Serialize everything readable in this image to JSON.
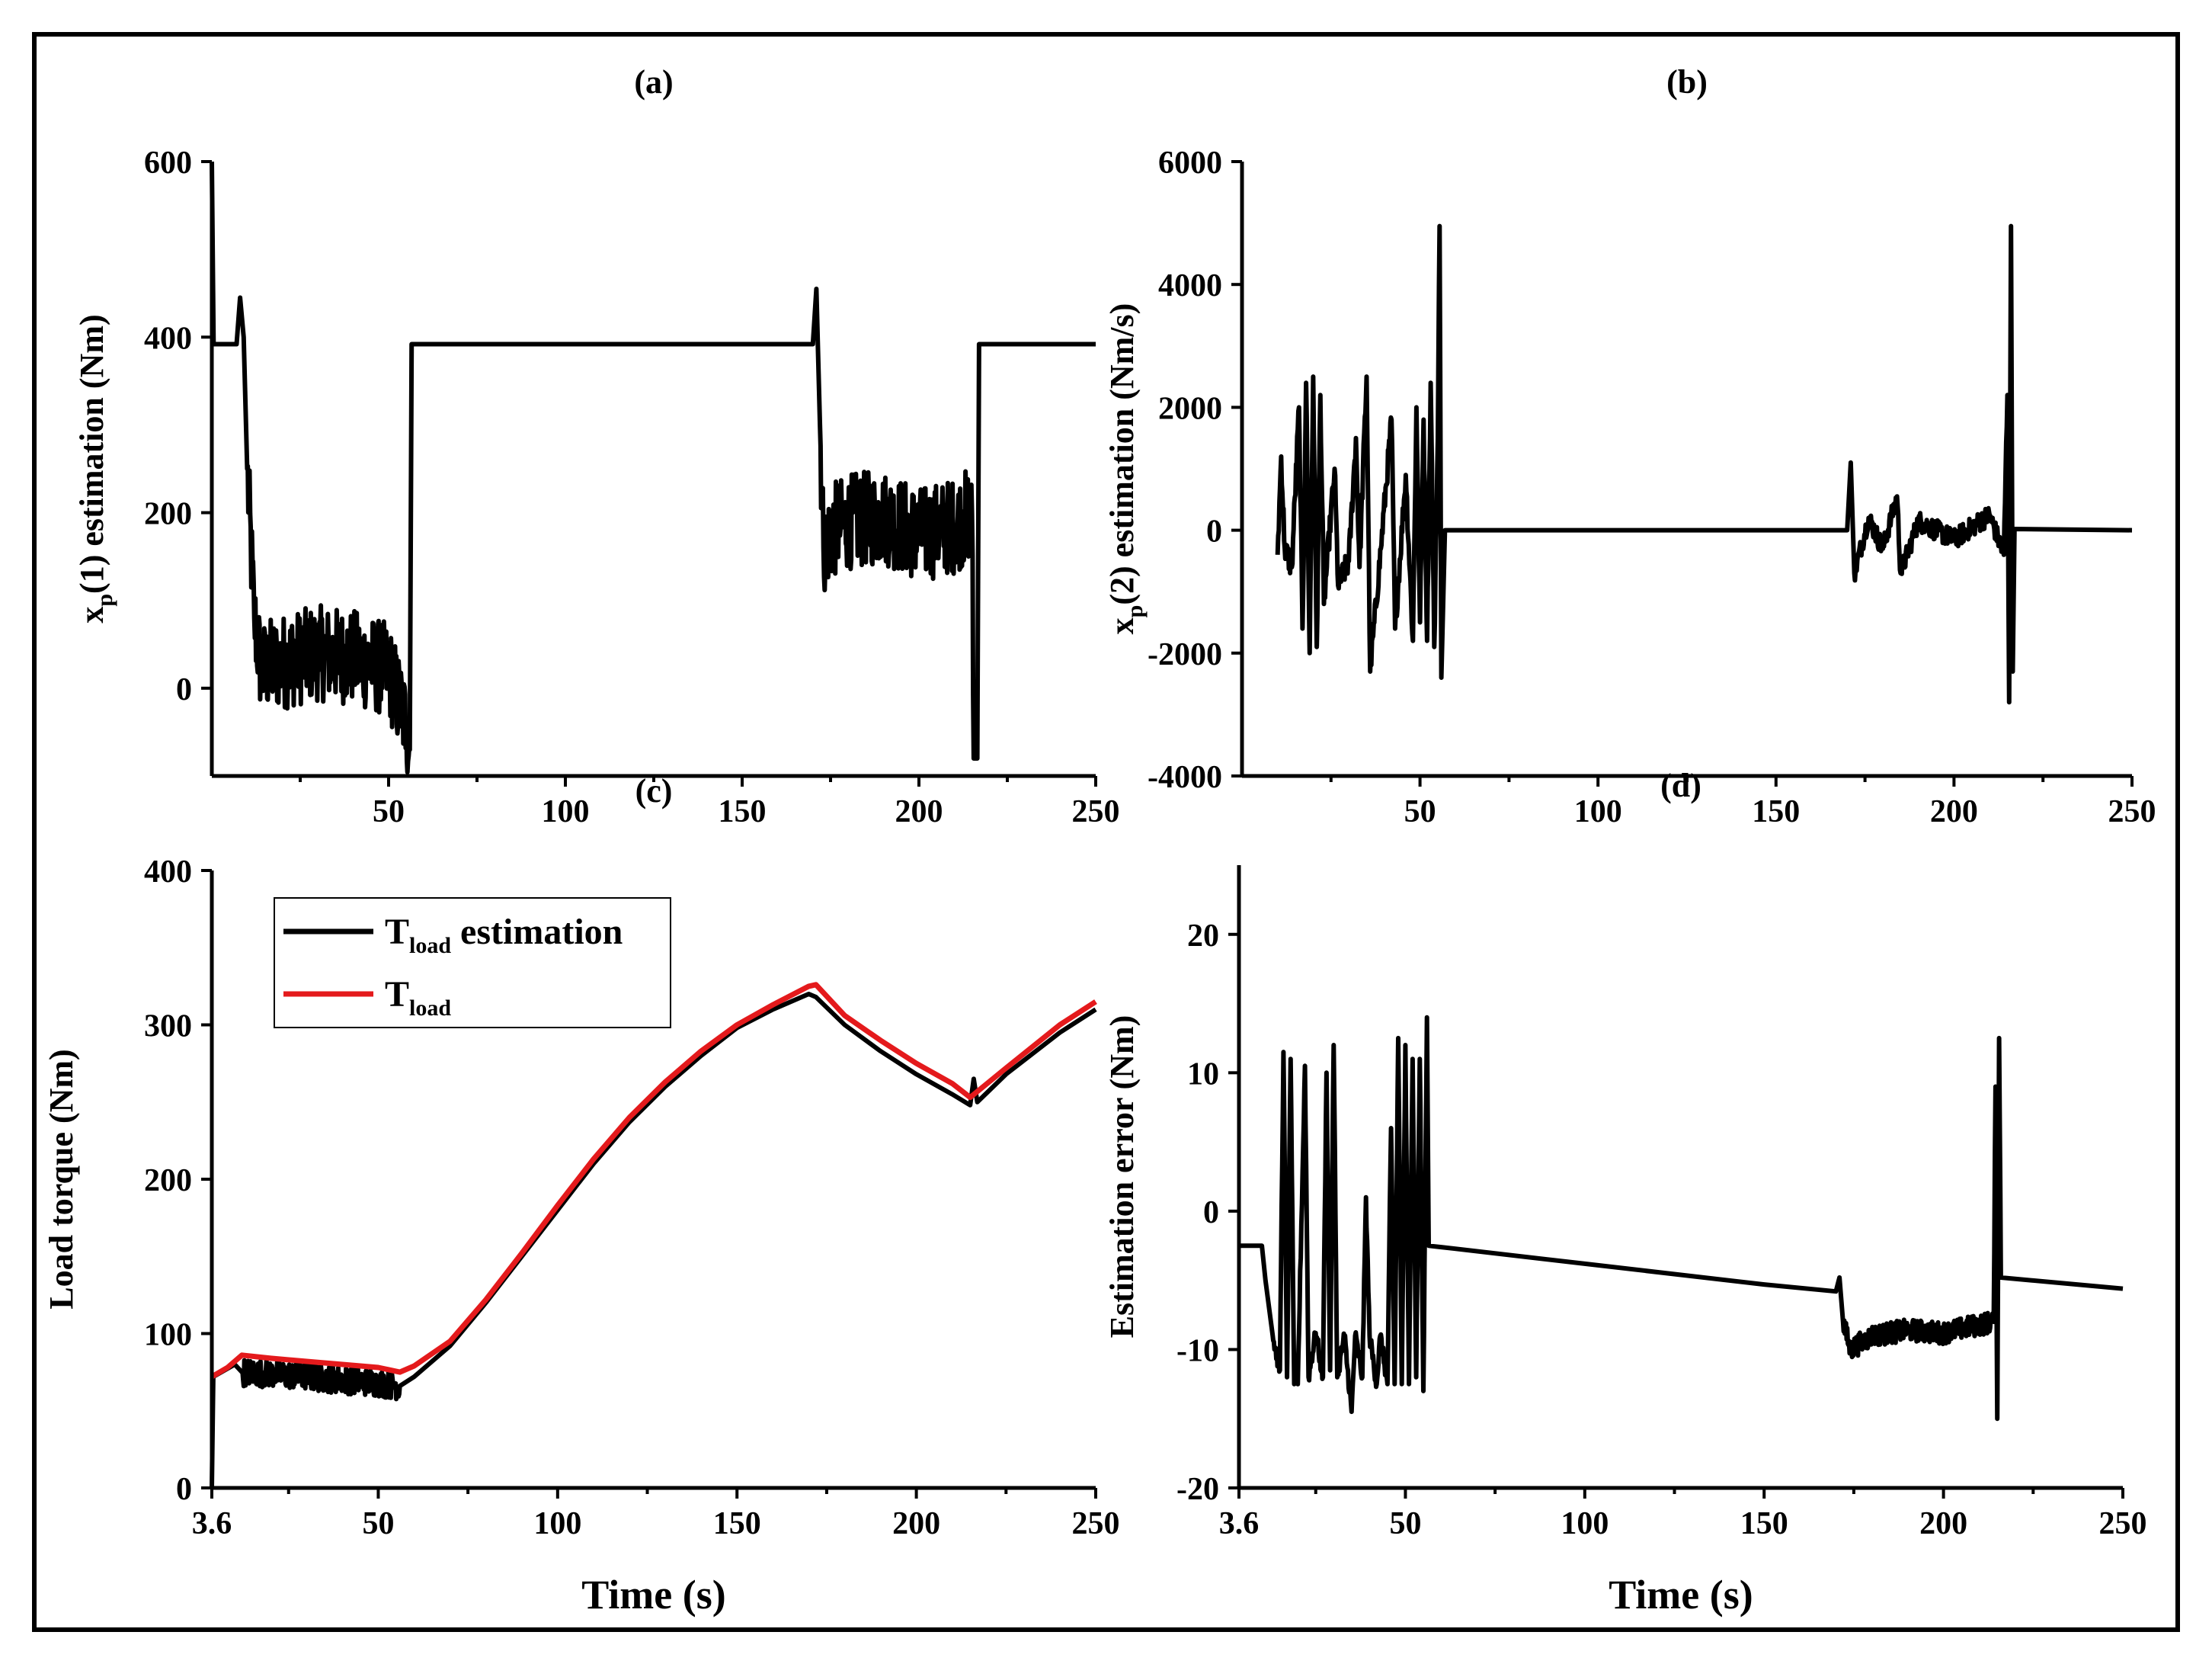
{
  "colors": {
    "estimate": "#000000",
    "reference": "#e41a1c",
    "frame": "#000000"
  },
  "chart_data": [
    {
      "id": "a",
      "type": "line",
      "title": "(a)",
      "ylabel": {
        "base": "x",
        "sub": "p",
        "rest": "(1) estimation (Nm)"
      },
      "xlabel": "",
      "xlim": [
        0,
        250
      ],
      "ylim": [
        -100,
        600
      ],
      "xticks": [
        50,
        100,
        150,
        200,
        250
      ],
      "xticklabels": [
        "50",
        "100",
        "150",
        "200",
        "250"
      ],
      "yticks": [
        0,
        200,
        400,
        600
      ],
      "yticklabels": [
        "0",
        "200",
        "400",
        "600"
      ],
      "series": [
        {
          "name": "xp(1) estimation",
          "color": "#000000",
          "noise": [
            [
              10,
              56,
              55
            ],
            [
              172,
              216,
              55
            ]
          ],
          "points": [
            [
              0,
              600
            ],
            [
              0.5,
              392
            ],
            [
              7,
              392
            ],
            [
              8,
              445
            ],
            [
              9,
              400
            ],
            [
              10,
              250
            ],
            [
              12,
              80
            ],
            [
              14,
              20
            ],
            [
              16,
              25
            ],
            [
              20,
              30
            ],
            [
              30,
              40
            ],
            [
              40,
              35
            ],
            [
              50,
              20
            ],
            [
              55,
              -40
            ],
            [
              56,
              -70
            ],
            [
              56.5,
              392
            ],
            [
              60,
              392
            ],
            [
              170,
              392
            ],
            [
              171,
              455
            ],
            [
              172,
              300
            ],
            [
              173,
              160
            ],
            [
              176,
              180
            ],
            [
              180,
              190
            ],
            [
              190,
              195
            ],
            [
              200,
              175
            ],
            [
              210,
              185
            ],
            [
              215,
              200
            ],
            [
              215.5,
              -80
            ],
            [
              216.5,
              -80
            ],
            [
              217,
              392
            ],
            [
              250,
              392
            ]
          ]
        }
      ]
    },
    {
      "id": "b",
      "type": "line",
      "title": "(b)",
      "ylabel": {
        "base": "x",
        "sub": "p",
        "rest": "(2) estimation (Nm/s)"
      },
      "xlabel": "",
      "xlim": [
        0,
        250
      ],
      "ylim": [
        -4000,
        6000
      ],
      "xticks": [
        50,
        100,
        150,
        200,
        250
      ],
      "xticklabels": [
        "50",
        "100",
        "150",
        "200",
        "250"
      ],
      "yticks": [
        -4000,
        -2000,
        0,
        2000,
        4000,
        6000
      ],
      "yticklabels": [
        "-4000",
        "-2000",
        "0",
        "2000",
        "4000",
        "6000"
      ],
      "series": [
        {
          "name": "xp(2) estimation",
          "color": "#000000",
          "noise": [
            [
              10,
              56,
              220
            ],
            [
              172,
              216,
              170
            ]
          ],
          "points": [
            [
              10,
              -400
            ],
            [
              11,
              1200
            ],
            [
              12,
              -300
            ],
            [
              14,
              -600
            ],
            [
              16,
              2000
            ],
            [
              17,
              -1600
            ],
            [
              18,
              2400
            ],
            [
              19,
              -2000
            ],
            [
              20,
              2500
            ],
            [
              21,
              -1900
            ],
            [
              22,
              2200
            ],
            [
              23,
              -1200
            ],
            [
              26,
              1000
            ],
            [
              27,
              -900
            ],
            [
              30,
              -500
            ],
            [
              32,
              1500
            ],
            [
              33,
              -600
            ],
            [
              35,
              2500
            ],
            [
              36,
              -2300
            ],
            [
              39,
              -300
            ],
            [
              42,
              1800
            ],
            [
              43,
              -1600
            ],
            [
              46,
              900
            ],
            [
              48,
              -1800
            ],
            [
              49,
              2000
            ],
            [
              50,
              -1500
            ],
            [
              51,
              1800
            ],
            [
              52,
              -1800
            ],
            [
              53,
              2400
            ],
            [
              54,
              -1900
            ],
            [
              55,
              1500
            ],
            [
              55.5,
              4950
            ],
            [
              56,
              -2400
            ],
            [
              57,
              0
            ],
            [
              100,
              0
            ],
            [
              170,
              0
            ],
            [
              171,
              1100
            ],
            [
              172,
              -700
            ],
            [
              176,
              200
            ],
            [
              180,
              -300
            ],
            [
              184,
              550
            ],
            [
              185,
              -700
            ],
            [
              190,
              150
            ],
            [
              200,
              -150
            ],
            [
              210,
              250
            ],
            [
              214,
              -400
            ],
            [
              215,
              2200
            ],
            [
              215.5,
              -2800
            ],
            [
              216,
              4950
            ],
            [
              216.5,
              -2300
            ],
            [
              217,
              20
            ],
            [
              250,
              0
            ]
          ]
        }
      ]
    },
    {
      "id": "c",
      "type": "line",
      "title": "(c)",
      "ylabel": "Load torque (Nm)",
      "xlabel": "Time (s)",
      "xlim": [
        3.6,
        250
      ],
      "ylim": [
        0,
        400
      ],
      "xticks": [
        3.6,
        50,
        100,
        150,
        200,
        250
      ],
      "xticklabels": [
        "3.6",
        "50",
        "100",
        "150",
        "200",
        "250"
      ],
      "yticks": [
        0,
        100,
        200,
        300,
        400
      ],
      "yticklabels": [
        "0",
        "100",
        "200",
        "300",
        "400"
      ],
      "legend": [
        {
          "base": "T",
          "sub": "load",
          "rest": " estimation",
          "color": "#000000"
        },
        {
          "base": "T",
          "sub": "load",
          "rest": "",
          "color": "#e41a1c"
        }
      ],
      "series": [
        {
          "name": "Tload estimation",
          "color": "#000000",
          "noise": [
            [
              12,
              56,
              9
            ]
          ],
          "points": [
            [
              3.6,
              0
            ],
            [
              4,
              72
            ],
            [
              10,
              80
            ],
            [
              12,
              75
            ],
            [
              20,
              74
            ],
            [
              30,
              72
            ],
            [
              40,
              70
            ],
            [
              50,
              68
            ],
            [
              56,
              66
            ],
            [
              60,
              72
            ],
            [
              70,
              92
            ],
            [
              80,
              120
            ],
            [
              90,
              150
            ],
            [
              100,
              180
            ],
            [
              110,
              210
            ],
            [
              120,
              237
            ],
            [
              130,
              260
            ],
            [
              140,
              280
            ],
            [
              150,
              298
            ],
            [
              160,
              310
            ],
            [
              170,
              320
            ],
            [
              172,
              318
            ],
            [
              180,
              300
            ],
            [
              190,
              283
            ],
            [
              200,
              268
            ],
            [
              210,
              255
            ],
            [
              215,
              248
            ],
            [
              216,
              265
            ],
            [
              217,
              250
            ],
            [
              225,
              268
            ],
            [
              240,
              295
            ],
            [
              250,
              310
            ]
          ]
        },
        {
          "name": "Tload",
          "color": "#e41a1c",
          "points": [
            [
              3.6,
              72
            ],
            [
              8,
              78
            ],
            [
              12,
              86
            ],
            [
              20,
              84
            ],
            [
              30,
              82
            ],
            [
              40,
              80
            ],
            [
              50,
              78
            ],
            [
              56,
              75
            ],
            [
              60,
              79
            ],
            [
              70,
              95
            ],
            [
              80,
              122
            ],
            [
              90,
              152
            ],
            [
              100,
              183
            ],
            [
              110,
              213
            ],
            [
              120,
              240
            ],
            [
              130,
              263
            ],
            [
              140,
              283
            ],
            [
              150,
              300
            ],
            [
              160,
              313
            ],
            [
              170,
              325
            ],
            [
              172,
              326
            ],
            [
              180,
              306
            ],
            [
              190,
              290
            ],
            [
              200,
              275
            ],
            [
              210,
              262
            ],
            [
              215,
              253
            ],
            [
              225,
              272
            ],
            [
              240,
              300
            ],
            [
              250,
              315
            ]
          ]
        }
      ]
    },
    {
      "id": "d",
      "type": "line",
      "title": "(d)",
      "ylabel": "Estimation error (Nm)",
      "xlabel": "Time (s)",
      "xlim": [
        3.6,
        250
      ],
      "ylim": [
        -20,
        25
      ],
      "xticks": [
        3.6,
        50,
        100,
        150,
        200,
        250
      ],
      "xticklabels": [
        "3.6",
        "50",
        "100",
        "150",
        "200",
        "250"
      ],
      "yticks": [
        -20,
        -10,
        0,
        10,
        20
      ],
      "yticklabels": [
        "-20",
        "-10",
        "0",
        "10",
        "20"
      ],
      "series": [
        {
          "name": "Estimation error",
          "color": "#000000",
          "noise": [
            [
              13,
              56,
              0.6
            ],
            [
              172,
              216,
              0.8
            ]
          ],
          "points": [
            [
              3.6,
              -2.5
            ],
            [
              10,
              -2.5
            ],
            [
              11,
              -5
            ],
            [
              13,
              -9
            ],
            [
              15,
              -11.5
            ],
            [
              16,
              11.5
            ],
            [
              17,
              -12
            ],
            [
              18,
              11
            ],
            [
              19,
              -12.5
            ],
            [
              20,
              -12.5
            ],
            [
              22,
              10.5
            ],
            [
              23,
              -12
            ],
            [
              25,
              -8.8
            ],
            [
              27,
              -12
            ],
            [
              28,
              10
            ],
            [
              29,
              -11.5
            ],
            [
              30,
              12
            ],
            [
              31,
              -12
            ],
            [
              33,
              -9
            ],
            [
              35,
              -14.5
            ],
            [
              36,
              -9
            ],
            [
              38,
              -12
            ],
            [
              39,
              1
            ],
            [
              40,
              -9
            ],
            [
              42,
              -12.5
            ],
            [
              43,
              -9
            ],
            [
              45,
              -12.5
            ],
            [
              46,
              6
            ],
            [
              47,
              -12.5
            ],
            [
              48,
              12.5
            ],
            [
              49,
              -12.5
            ],
            [
              50,
              12
            ],
            [
              51,
              -12.5
            ],
            [
              52,
              11
            ],
            [
              53,
              -12
            ],
            [
              54,
              11
            ],
            [
              55,
              -13
            ],
            [
              56,
              14
            ],
            [
              56.5,
              -2.5
            ],
            [
              60,
              -2.6
            ],
            [
              100,
              -3.8
            ],
            [
              150,
              -5.3
            ],
            [
              170,
              -5.8
            ],
            [
              171,
              -4.8
            ],
            [
              172,
              -8
            ],
            [
              174,
              -10
            ],
            [
              180,
              -9
            ],
            [
              190,
              -8.6
            ],
            [
              200,
              -8.8
            ],
            [
              210,
              -8.2
            ],
            [
              214,
              -8
            ],
            [
              214.5,
              9
            ],
            [
              215,
              -15
            ],
            [
              215.5,
              12.5
            ],
            [
              216,
              -4.8
            ],
            [
              250,
              -5.6
            ]
          ]
        }
      ]
    }
  ]
}
